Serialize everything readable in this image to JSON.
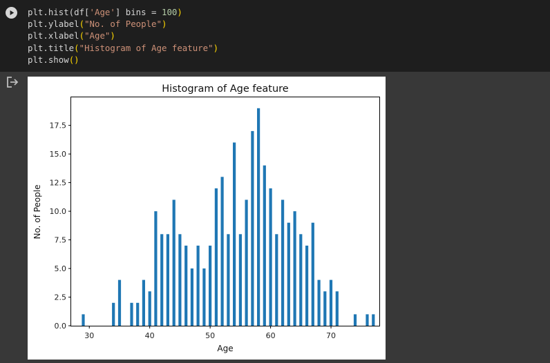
{
  "cell": {
    "code_lines": [
      [
        {
          "t": "plt.hist(df[",
          "c": ""
        },
        {
          "t": "'Age'",
          "c": "str"
        },
        {
          "t": "] bins = ",
          "c": ""
        },
        {
          "t": "100",
          "c": "num"
        },
        {
          "t": ")",
          "c": "par"
        }
      ],
      [
        {
          "t": "plt.ylabel",
          "c": ""
        },
        {
          "t": "(",
          "c": "par"
        },
        {
          "t": "\"No. of People\"",
          "c": "str"
        },
        {
          "t": ")",
          "c": "par"
        }
      ],
      [
        {
          "t": "plt.xlabel",
          "c": ""
        },
        {
          "t": "(",
          "c": "par"
        },
        {
          "t": "\"Age\"",
          "c": "str"
        },
        {
          "t": ")",
          "c": "par"
        }
      ],
      [
        {
          "t": "plt.title",
          "c": ""
        },
        {
          "t": "(",
          "c": "par"
        },
        {
          "t": "\"Histogram of Age feature\"",
          "c": "str"
        },
        {
          "t": ")",
          "c": "par"
        }
      ],
      [
        {
          "t": "plt.show",
          "c": ""
        },
        {
          "t": "()",
          "c": "par"
        }
      ]
    ]
  },
  "icons": {
    "run": "play-circle-icon",
    "output": "output-redirect-icon"
  },
  "chart_data": {
    "type": "bar",
    "title": "Histogram of Age feature",
    "xlabel": "Age",
    "ylabel": "No. of People",
    "xlim": [
      27,
      78
    ],
    "ylim": [
      0,
      19.95
    ],
    "xticks": [
      30,
      40,
      50,
      60,
      70
    ],
    "yticks": [
      0.0,
      2.5,
      5.0,
      7.5,
      10.0,
      12.5,
      15.0,
      17.5
    ],
    "bar_color": "#1f77b4",
    "x": [
      29,
      34,
      35,
      37,
      38,
      39,
      40,
      41,
      42,
      43,
      44,
      45,
      46,
      47,
      48,
      49,
      50,
      51,
      52,
      53,
      54,
      55,
      56,
      57,
      58,
      59,
      60,
      61,
      62,
      63,
      64,
      65,
      66,
      67,
      68,
      69,
      70,
      71,
      74,
      76,
      77
    ],
    "values": [
      1,
      2,
      4,
      2,
      2,
      4,
      3,
      10,
      8,
      8,
      11,
      8,
      7,
      5,
      7,
      5,
      7,
      12,
      13,
      8,
      16,
      8,
      11,
      17,
      19,
      14,
      12,
      8,
      11,
      9,
      10,
      8,
      7,
      9,
      4,
      3,
      4,
      3,
      1,
      1,
      1
    ],
    "bar_width": 0.48
  }
}
